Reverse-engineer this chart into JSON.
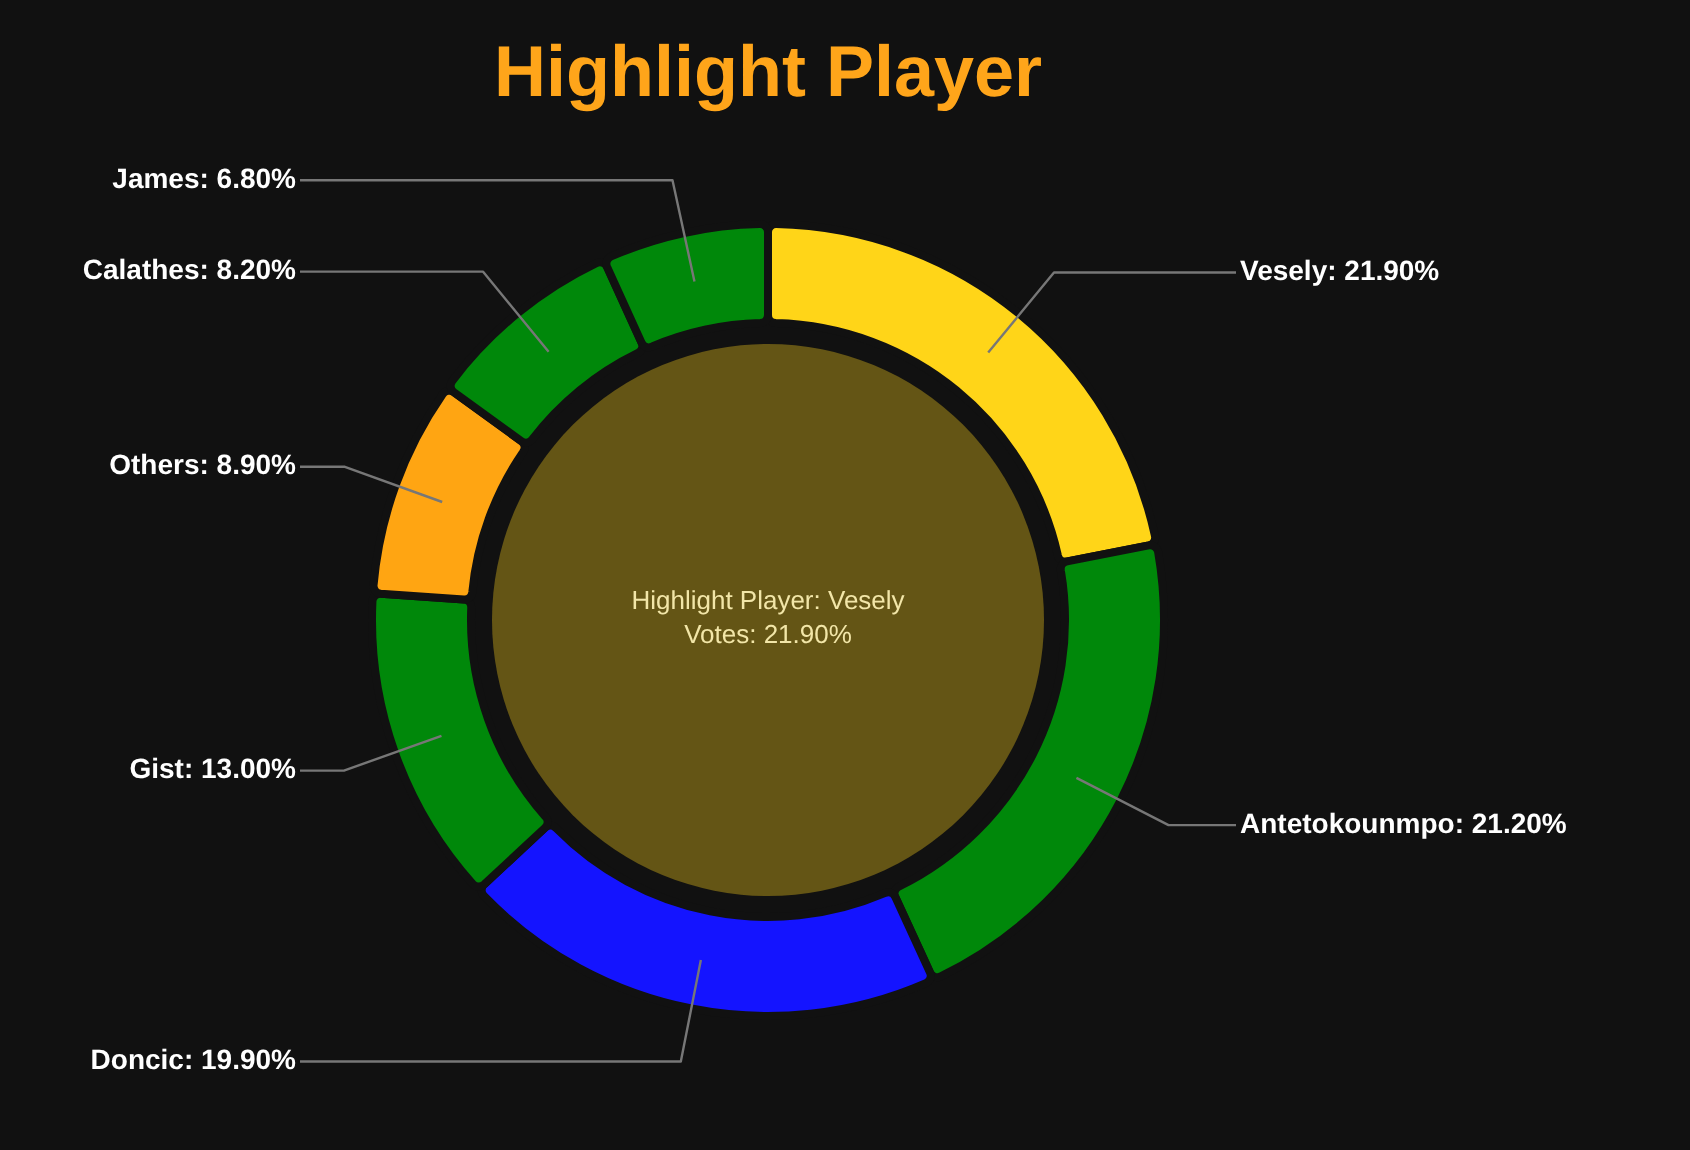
{
  "chart_data": {
    "type": "donut",
    "title": "Highlight Player",
    "categories": [
      "Vesely",
      "Antetokounmpo",
      "Doncic",
      "Gist",
      "Others",
      "Calathes",
      "James"
    ],
    "values": [
      21.9,
      21.2,
      19.9,
      13.0,
      8.9,
      8.2,
      6.8
    ],
    "value_labels": [
      "21.90%",
      "21.20%",
      "19.90%",
      "13.00%",
      "8.90%",
      "8.20%",
      "6.80%"
    ],
    "colors": [
      "#ffd518",
      "#00880a",
      "#1414ff",
      "#00880a",
      "#ffa512",
      "#00880a",
      "#00880a"
    ],
    "annotations": [
      "Highlight Player: Vesely",
      "Votes: 21.90%"
    ],
    "legend": false
  }
}
